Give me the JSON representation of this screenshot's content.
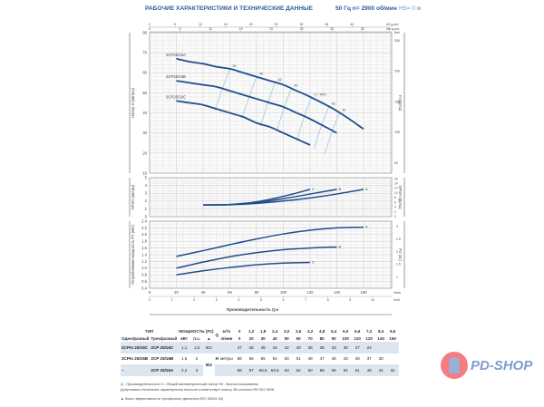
{
  "header": {
    "title": "РАБОЧИЕ ХАРАКТЕРИСТИКИ И ТЕХНИЧЕСКИЕ ДАННЫЕ",
    "frequency": "50 Гц   n= 2900 об/мин",
    "hs": "HS= 0 м"
  },
  "chart_data": [
    {
      "type": "line",
      "ylabel": "Напор H (метры)",
      "ylabel_right": "H (футы)",
      "ylim": [
        10,
        80
      ],
      "xlim": [
        0,
        180
      ],
      "grid": true,
      "top_axes": [
        {
          "label": "US g.p.m.",
          "ticks": [
            0,
            5,
            10,
            15,
            20,
            25,
            30,
            35,
            40
          ]
        },
        {
          "label": "Imp g.p.m.",
          "ticks": [
            0,
            5,
            10,
            15,
            20,
            25,
            30,
            35
          ]
        }
      ],
      "right_ticks": [
        50,
        100,
        150,
        200,
        250
      ],
      "right_unit": "feet",
      "series": [
        {
          "name": "2CP25/16A",
          "x": [
            20,
            30,
            40,
            50,
            60,
            70,
            80,
            90,
            100,
            110,
            120,
            140,
            160
          ],
          "y": [
            67,
            65.5,
            64.5,
            63,
            62,
            60,
            58,
            56,
            54,
            51,
            48,
            41,
            32
          ]
        },
        {
          "name": "2CP25/16B",
          "x": [
            20,
            30,
            40,
            50,
            60,
            70,
            80,
            90,
            100,
            110,
            120,
            140
          ],
          "y": [
            56,
            55,
            54,
            53,
            51,
            49,
            47,
            45,
            43,
            40,
            37,
            30
          ]
        },
        {
          "name": "2CP25/16C",
          "x": [
            20,
            30,
            40,
            50,
            60,
            70,
            80,
            90,
            100,
            110,
            120
          ],
          "y": [
            46,
            45,
            44,
            42,
            40,
            38,
            35,
            33,
            30,
            27,
            24
          ]
        }
      ],
      "efficiency_lines": [
        {
          "q": 60,
          "label": "30"
        },
        {
          "q": 80,
          "label": "40"
        },
        {
          "q": 94,
          "label": "42"
        },
        {
          "q": 106,
          "label": "43"
        },
        {
          "q": 121,
          "label": "η = 44%"
        },
        {
          "q": 134,
          "label": "43"
        },
        {
          "q": 142,
          "label": "42"
        }
      ]
    },
    {
      "type": "line",
      "ylabel": "NPSH (метры)",
      "ylabel_right": "NPSH (футы)",
      "ylim": [
        0,
        5
      ],
      "right_ticks": [
        0,
        2,
        4,
        6,
        8,
        10,
        12,
        14,
        16
      ],
      "series": [
        {
          "name": "C",
          "x": [
            40,
            60,
            80,
            100,
            120
          ],
          "y": [
            1.5,
            1.55,
            1.9,
            2.6,
            3.5
          ]
        },
        {
          "name": "B",
          "x": [
            40,
            60,
            80,
            100,
            120,
            140
          ],
          "y": [
            1.5,
            1.55,
            1.8,
            2.3,
            2.9,
            3.5
          ]
        },
        {
          "name": "A",
          "x": [
            40,
            60,
            80,
            100,
            120,
            140,
            160
          ],
          "y": [
            1.5,
            1.52,
            1.7,
            2.0,
            2.4,
            2.9,
            3.5
          ]
        }
      ]
    },
    {
      "type": "line",
      "ylabel": "Потребляемая мощность P2 (кВт)",
      "ylabel_right": "P2 (лс)",
      "ylim": [
        0.4,
        2.4
      ],
      "right_ticks": [
        1,
        1.5,
        2,
        2.5,
        3
      ],
      "series": [
        {
          "name": "A",
          "x": [
            20,
            40,
            60,
            80,
            100,
            120,
            140,
            160
          ],
          "y": [
            1.35,
            1.52,
            1.7,
            1.87,
            2.02,
            2.13,
            2.2,
            2.22
          ]
        },
        {
          "name": "B",
          "x": [
            20,
            40,
            60,
            80,
            100,
            120,
            140
          ],
          "y": [
            1.0,
            1.18,
            1.34,
            1.46,
            1.55,
            1.6,
            1.63
          ]
        },
        {
          "name": "C",
          "x": [
            20,
            40,
            60,
            80,
            100,
            120
          ],
          "y": [
            0.8,
            0.92,
            1.02,
            1.1,
            1.15,
            1.17
          ]
        }
      ],
      "x_ticks_lmin": [
        0,
        20,
        40,
        60,
        80,
        100,
        120,
        140,
        160
      ],
      "x_unit_lmin": "l/min",
      "x_ticks_m3h": [
        0,
        1,
        2,
        3,
        4,
        5,
        6,
        7,
        8,
        9,
        10
      ],
      "x_unit_m3h": "m³/h",
      "xlabel": "Производительность Q ▸"
    }
  ],
  "table": {
    "h_type": "ТИП",
    "h_single": "Однофазный",
    "h_three": "Трехфазный",
    "h_power": "МОЩНОСТЬ (P2)",
    "h_kw": "кВт",
    "h_hp": "л.с.",
    "h_class": "▲",
    "q_label": "Q",
    "q_unit1": "м³/ч",
    "q_unit2": "л/мин",
    "h_label": "H",
    "h_unit": "метры",
    "q_m3h": [
      "0",
      "1,2",
      "1,8",
      "2,4",
      "3,0",
      "3,6",
      "4,2",
      "4,8",
      "5,4",
      "6,0",
      "6,6",
      "7,2",
      "8,4",
      "9,6"
    ],
    "q_lmin": [
      "0",
      "20",
      "30",
      "40",
      "50",
      "60",
      "70",
      "80",
      "90",
      "100",
      "110",
      "120",
      "140",
      "160"
    ],
    "rows": [
      {
        "single": "2CPm 25/16C",
        "three": "2CP 25/16C",
        "kw": "1,1",
        "hp": "1,5",
        "cls": "IE2",
        "h": [
          "47",
          "46",
          "45",
          "44",
          "42",
          "40",
          "38",
          "35",
          "33",
          "30",
          "27",
          "24",
          "",
          ""
        ]
      },
      {
        "single": "2CPm 25/16B",
        "three": "2CP 25/16B",
        "kw": "1,5",
        "hp": "2",
        "cls": "IE3",
        "h": [
          "58",
          "56",
          "55",
          "54",
          "53",
          "51",
          "49",
          "47",
          "45",
          "43",
          "40",
          "37",
          "30",
          ""
        ]
      },
      {
        "single": "–",
        "three": "2CP 25/16A",
        "kw": "2,2",
        "hp": "3",
        "cls": "",
        "h": [
          "68",
          "67",
          "65,5",
          "64,5",
          "63",
          "62",
          "60",
          "58",
          "56",
          "54",
          "51",
          "48",
          "41",
          "32"
        ]
      }
    ]
  },
  "footnotes": {
    "n1": "Q - Производительность   H - Общий манометрический напор   HS - Высота всасывания",
    "n2": "Допустимое отклонение характеристик насосов соответствует классу 3B согласно EN ISO 9906.",
    "n3": "▲  Класс эффективности трехфазного двигателя (IEC 60034-30)"
  },
  "logo": {
    "text": "PD-SHOP"
  },
  "colors": {
    "curve": "#1f4e8c",
    "iso": "#8ec3dd",
    "title": "#2a5d9f",
    "shade": "#dde6ee",
    "logo": "#f47c82"
  }
}
